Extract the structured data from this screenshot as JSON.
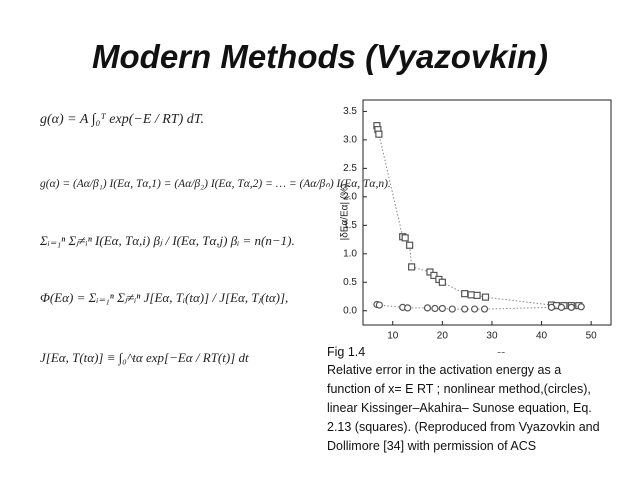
{
  "header": {
    "title": "Modern Methods (Vyazovkin)"
  },
  "equations": [
    "g(α) = A ∫₀ᵀ exp(−E / RT) dT.",
    "g(α) = (Aα/β₁) I(Eα, Tα,1) = (Aα/β₂) I(Eα, Tα,2) = … = (Aα/βₙ) I(Eα, Tα,n).",
    "Σᵢ₌₁ⁿ Σⱼ≠ᵢⁿ I(Eα, Tα,i) βⱼ / I(Eα, Tα,j) βᵢ = n(n−1).",
    "Φ(Eα) = Σᵢ₌₁ⁿ Σⱼ≠ᵢⁿ J[Eα, Tᵢ(tα)] / J[Eα, Tⱼ(tα)],",
    "J[Eα, T(tα)] ≡ ∫₀^tα exp[−Eα / RT(t)] dt"
  ],
  "chart_data": {
    "type": "scatter",
    "y_label": "|δEα/Eα| (%)",
    "xlim": [
      4,
      54
    ],
    "ylim": [
      -0.25,
      3.7
    ],
    "xticks": [
      10,
      20,
      30,
      40,
      50
    ],
    "yticks": [
      {
        "value": 0,
        "label": "0.0"
      },
      0.5,
      {
        "value": 1,
        "label": "1.0"
      },
      1.5,
      {
        "value": 2,
        "label": "2.0"
      },
      2.5,
      {
        "value": 3,
        "label": "3.0"
      },
      3.5
    ],
    "series": [
      {
        "marker": "square",
        "color": "#555555",
        "x": [
          6.8,
          7.0,
          7.2,
          12,
          12.5,
          13.4,
          13.8,
          17.5,
          18.3,
          19.3,
          20,
          24.5,
          25.8,
          27,
          28.7,
          42,
          43,
          44.5,
          46,
          47.5
        ],
        "values": [
          3.25,
          3.18,
          3.1,
          1.3,
          1.28,
          1.15,
          0.77,
          0.68,
          0.62,
          0.55,
          0.5,
          0.3,
          0.28,
          0.27,
          0.24,
          0.1,
          0.09,
          0.09,
          0.09,
          0.09
        ]
      },
      {
        "marker": "circle",
        "color": "#555555",
        "x": [
          6.8,
          7.3,
          12,
          13,
          17,
          18.5,
          20,
          22,
          24.5,
          26.5,
          28.5,
          42,
          44,
          46,
          48
        ],
        "values": [
          0.11,
          0.1,
          0.06,
          0.05,
          0.05,
          0.04,
          0.04,
          0.03,
          0.03,
          0.03,
          0.03,
          0.06,
          0.06,
          0.06,
          0.07
        ]
      }
    ]
  },
  "caption": {
    "figure": "Fig 1.4",
    "mark": "--",
    "lines": [
      "Relative error in the activation energy as a",
      "function of x= E RT ; nonlinear method,(circles),",
      "linear Kissinger–Akahira– Sunose equation, Eq.",
      "2.13 (squares). (Reproduced from Vyazovkin and",
      "Dollimore [34] with permission of ACS"
    ]
  }
}
